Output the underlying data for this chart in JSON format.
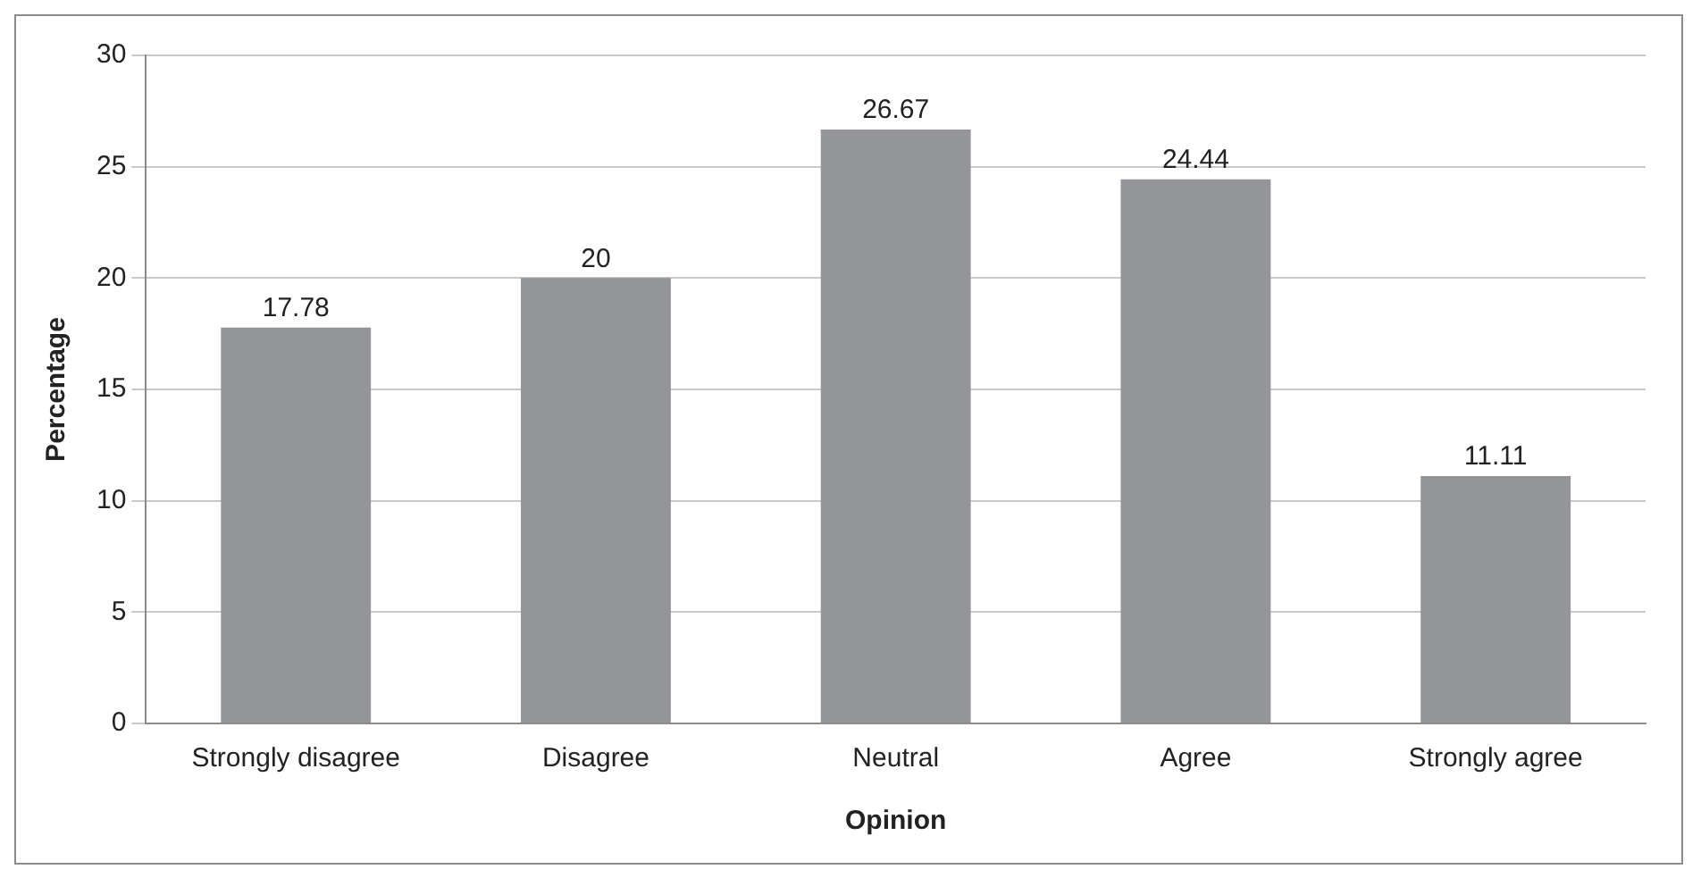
{
  "chart_data": {
    "type": "bar",
    "xlabel": "Opinion",
    "ylabel": "Percentage",
    "categories": [
      "Strongly disagree",
      "Disagree",
      "Neutral",
      "Agree",
      "Strongly agree"
    ],
    "values": [
      17.78,
      20,
      26.67,
      24.44,
      11.11
    ],
    "color": "#939598",
    "ylim": [
      0,
      30
    ],
    "yticks": [
      0,
      5,
      10,
      15,
      20,
      25,
      30
    ],
    "grid": "y",
    "data_labels": true,
    "legend": false
  }
}
